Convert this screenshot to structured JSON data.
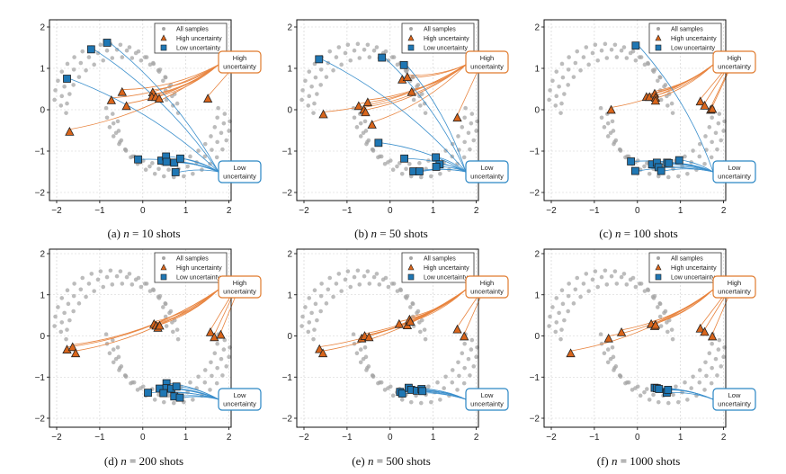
{
  "chart_data": [
    {
      "type": "scatter",
      "panel": "a",
      "caption_prefix": "(a)",
      "caption_var": "n",
      "caption_value": "= 10 shots",
      "high": [
        [
          -1.7,
          -0.54
        ],
        [
          -0.73,
          0.22
        ],
        [
          -0.48,
          0.42
        ],
        [
          -0.38,
          0.08
        ],
        [
          0.23,
          0.41
        ],
        [
          0.21,
          0.3
        ],
        [
          0.3,
          0.3
        ],
        [
          0.38,
          0.26
        ],
        [
          1.51,
          0.26
        ]
      ],
      "low": [
        [
          -0.83,
          1.62
        ],
        [
          -1.2,
          1.46
        ],
        [
          -1.76,
          0.75
        ],
        [
          -0.11,
          -1.2
        ],
        [
          0.43,
          -1.23
        ],
        [
          0.54,
          -1.13
        ],
        [
          0.55,
          -1.26
        ],
        [
          0.73,
          -1.28
        ],
        [
          0.87,
          -1.18
        ],
        [
          0.76,
          -1.51
        ]
      ]
    },
    {
      "type": "scatter",
      "panel": "b",
      "caption_prefix": "(b)",
      "caption_var": "n",
      "caption_value": "= 50 shots",
      "high": [
        [
          -1.55,
          -0.12
        ],
        [
          -0.73,
          0.08
        ],
        [
          -0.52,
          0.17
        ],
        [
          -0.61,
          -0.01
        ],
        [
          -0.57,
          -0.07
        ],
        [
          -0.42,
          -0.37
        ],
        [
          0.28,
          0.72
        ],
        [
          0.4,
          0.78
        ],
        [
          0.5,
          0.42
        ],
        [
          1.56,
          -0.2
        ]
      ],
      "low": [
        [
          -1.65,
          1.22
        ],
        [
          -0.19,
          1.26
        ],
        [
          0.32,
          1.08
        ],
        [
          -0.27,
          -0.8
        ],
        [
          0.33,
          -1.18
        ],
        [
          0.54,
          -1.49
        ],
        [
          0.68,
          -1.49
        ],
        [
          1.06,
          -1.15
        ],
        [
          1.15,
          -1.32
        ],
        [
          1.07,
          -1.38
        ]
      ]
    },
    {
      "type": "scatter",
      "panel": "c",
      "caption_prefix": "(c)",
      "caption_var": "n",
      "caption_value": "= 100 shots",
      "high": [
        [
          -0.61,
          -0.01
        ],
        [
          0.21,
          0.3
        ],
        [
          0.28,
          0.3
        ],
        [
          0.4,
          0.38
        ],
        [
          0.42,
          0.28
        ],
        [
          0.42,
          0.21
        ],
        [
          1.46,
          0.19
        ],
        [
          1.56,
          0.09
        ],
        [
          1.7,
          -0.01
        ],
        [
          1.74,
          0.01
        ]
      ],
      "low": [
        [
          -0.04,
          1.55
        ],
        [
          -0.15,
          -1.25
        ],
        [
          -0.05,
          -1.48
        ],
        [
          0.34,
          -1.32
        ],
        [
          0.45,
          -1.28
        ],
        [
          0.49,
          -1.39
        ],
        [
          0.55,
          -1.48
        ],
        [
          0.69,
          -1.28
        ],
        [
          0.73,
          -1.29
        ],
        [
          0.97,
          -1.22
        ]
      ]
    },
    {
      "type": "scatter",
      "panel": "d",
      "caption_prefix": "(d)",
      "caption_var": "n",
      "caption_value": "= 200 shots",
      "high": [
        [
          -1.76,
          -0.34
        ],
        [
          -1.63,
          -0.28
        ],
        [
          -1.56,
          -0.43
        ],
        [
          0.26,
          0.28
        ],
        [
          0.31,
          0.24
        ],
        [
          0.35,
          0.19
        ],
        [
          0.39,
          0.24
        ],
        [
          1.57,
          0.08
        ],
        [
          1.66,
          -0.04
        ],
        [
          1.81,
          0.02
        ]
      ],
      "low": [
        [
          0.12,
          -1.38
        ],
        [
          0.39,
          -1.28
        ],
        [
          0.55,
          -1.15
        ],
        [
          0.55,
          -1.27
        ],
        [
          0.48,
          -1.39
        ],
        [
          0.66,
          -1.28
        ],
        [
          0.73,
          -1.47
        ],
        [
          0.78,
          -1.23
        ],
        [
          0.86,
          -1.5
        ]
      ]
    },
    {
      "type": "scatter",
      "panel": "e",
      "caption_prefix": "(e)",
      "caption_var": "n",
      "caption_value": "= 500 shots",
      "high": [
        [
          -1.64,
          -0.33
        ],
        [
          -1.56,
          -0.43
        ],
        [
          -0.66,
          -0.07
        ],
        [
          -0.59,
          -0.01
        ],
        [
          -0.49,
          -0.04
        ],
        [
          0.21,
          0.28
        ],
        [
          0.4,
          0.25
        ],
        [
          0.45,
          0.39
        ],
        [
          0.47,
          0.34
        ],
        [
          1.56,
          0.15
        ],
        [
          1.72,
          -0.02
        ]
      ],
      "low": [
        [
          0.23,
          -1.36
        ],
        [
          0.28,
          -1.4
        ],
        [
          0.43,
          -1.26
        ],
        [
          0.49,
          -1.31
        ],
        [
          0.62,
          -1.33
        ],
        [
          0.73,
          -1.29
        ],
        [
          0.75,
          -1.34
        ]
      ]
    },
    {
      "type": "scatter",
      "panel": "f",
      "caption_prefix": "(f)",
      "caption_var": "n",
      "caption_value": "= 1000 shots",
      "high": [
        [
          -1.55,
          -0.43
        ],
        [
          -0.67,
          -0.07
        ],
        [
          -0.37,
          0.08
        ],
        [
          0.32,
          0.28
        ],
        [
          0.4,
          0.23
        ],
        [
          0.42,
          0.26
        ],
        [
          1.46,
          0.17
        ],
        [
          1.56,
          0.09
        ],
        [
          1.74,
          -0.02
        ]
      ],
      "low": [
        [
          0.4,
          -1.26
        ],
        [
          0.45,
          -1.27
        ],
        [
          0.5,
          -1.29
        ],
        [
          0.68,
          -1.38
        ],
        [
          0.71,
          -1.31
        ]
      ]
    }
  ],
  "shared": {
    "xlim": [
      -2.17,
      2.04
    ],
    "ylim": [
      -2.2,
      2.17
    ],
    "xticks": [
      -2,
      -1,
      0,
      1,
      2
    ],
    "yticks": [
      -2,
      -1,
      0,
      1,
      2
    ],
    "xtick_labels": [
      "−2",
      "−1",
      "0",
      "1",
      "2"
    ],
    "ytick_labels": [
      "−2",
      "−1",
      "0",
      "1",
      "2"
    ],
    "grid": true,
    "legend": {
      "position": "top-right",
      "items": [
        "All samples",
        "High uncertainty",
        "Low uncertainty"
      ]
    },
    "annotations": {
      "high": [
        "High",
        "uncertainty"
      ],
      "low": [
        "Low",
        "uncertainty"
      ]
    },
    "colors": {
      "samples": "#a6a6a6",
      "high": "#d9651b",
      "high_line": "#e8843f",
      "low": "#1f77b4",
      "low_line": "#3b8fcc",
      "high_box": "#e07b2e",
      "low_box": "#2a86c4"
    },
    "all_samples": [
      [
        0.7,
        0.1
      ],
      [
        0.68,
        0.33
      ],
      [
        0.62,
        0.56
      ],
      [
        0.53,
        0.78
      ],
      [
        0.4,
        0.97
      ],
      [
        0.24,
        1.13
      ],
      [
        0.05,
        1.27
      ],
      [
        -0.16,
        1.37
      ],
      [
        -0.37,
        1.43
      ],
      [
        -0.6,
        1.45
      ],
      [
        -0.83,
        1.43
      ],
      [
        -1.04,
        1.37
      ],
      [
        -1.25,
        1.27
      ],
      [
        -1.44,
        1.13
      ],
      [
        -1.6,
        0.97
      ],
      [
        -1.73,
        0.78
      ],
      [
        -1.82,
        0.56
      ],
      [
        -1.88,
        0.33
      ],
      [
        -1.9,
        0.1
      ],
      [
        0.82,
        -0.08
      ],
      [
        0.8,
        0.15
      ],
      [
        0.74,
        0.38
      ],
      [
        0.65,
        0.6
      ],
      [
        0.52,
        0.79
      ],
      [
        0.36,
        0.95
      ],
      [
        0.17,
        1.09
      ],
      [
        -0.04,
        1.19
      ],
      [
        -0.25,
        1.25
      ],
      [
        -0.48,
        1.27
      ],
      [
        -0.71,
        1.25
      ],
      [
        -0.92,
        1.19
      ],
      [
        -1.13,
        1.09
      ],
      [
        -1.32,
        0.95
      ],
      [
        -1.48,
        0.79
      ],
      [
        -1.61,
        0.6
      ],
      [
        -1.7,
        0.38
      ],
      [
        -1.76,
        0.15
      ],
      [
        -1.78,
        -0.08
      ],
      [
        0.55,
        0.24
      ],
      [
        0.53,
        0.47
      ],
      [
        0.47,
        0.7
      ],
      [
        0.38,
        0.92
      ],
      [
        0.25,
        1.11
      ],
      [
        0.09,
        1.27
      ],
      [
        -0.1,
        1.41
      ],
      [
        -0.31,
        1.51
      ],
      [
        -0.52,
        1.57
      ],
      [
        -0.75,
        1.59
      ],
      [
        -0.98,
        1.57
      ],
      [
        -1.19,
        1.51
      ],
      [
        -1.4,
        1.41
      ],
      [
        -1.59,
        1.27
      ],
      [
        -1.75,
        1.11
      ],
      [
        -1.88,
        0.92
      ],
      [
        -1.97,
        0.7
      ],
      [
        -2.03,
        0.47
      ],
      [
        -2.05,
        0.24
      ],
      [
        1.9,
        -0.1
      ],
      [
        1.88,
        -0.33
      ],
      [
        1.82,
        -0.56
      ],
      [
        1.73,
        -0.78
      ],
      [
        1.6,
        -0.97
      ],
      [
        1.44,
        -1.13
      ],
      [
        1.25,
        -1.27
      ],
      [
        1.04,
        -1.37
      ],
      [
        0.83,
        -1.43
      ],
      [
        0.6,
        -1.45
      ],
      [
        0.37,
        -1.43
      ],
      [
        0.16,
        -1.37
      ],
      [
        -0.05,
        -1.27
      ],
      [
        -0.24,
        -1.13
      ],
      [
        -0.4,
        -0.97
      ],
      [
        -0.53,
        -0.78
      ],
      [
        -0.62,
        -0.56
      ],
      [
        -0.68,
        -0.33
      ],
      [
        -0.7,
        -0.1
      ],
      [
        2.02,
        -0.28
      ],
      [
        2.0,
        -0.51
      ],
      [
        1.94,
        -0.74
      ],
      [
        1.85,
        -0.96
      ],
      [
        1.72,
        -1.15
      ],
      [
        1.56,
        -1.31
      ],
      [
        1.37,
        -1.45
      ],
      [
        1.16,
        -1.55
      ],
      [
        0.95,
        -1.61
      ],
      [
        0.72,
        -1.63
      ],
      [
        0.49,
        -1.61
      ],
      [
        0.28,
        -1.55
      ],
      [
        0.07,
        -1.45
      ],
      [
        -0.12,
        -1.31
      ],
      [
        -0.28,
        -1.15
      ],
      [
        -0.41,
        -0.96
      ],
      [
        -0.5,
        -0.74
      ],
      [
        -0.56,
        -0.51
      ],
      [
        -0.58,
        -0.28
      ],
      [
        1.75,
        0.04
      ],
      [
        1.73,
        -0.19
      ],
      [
        1.67,
        -0.42
      ],
      [
        1.58,
        -0.64
      ],
      [
        1.45,
        -0.83
      ],
      [
        1.29,
        -0.99
      ],
      [
        1.1,
        -1.13
      ],
      [
        0.89,
        -1.23
      ],
      [
        0.68,
        -1.29
      ],
      [
        0.45,
        -1.31
      ],
      [
        0.22,
        -1.29
      ],
      [
        0.01,
        -1.23
      ],
      [
        -0.2,
        -1.13
      ],
      [
        -0.39,
        -0.99
      ],
      [
        -0.55,
        -0.83
      ],
      [
        -0.68,
        -0.64
      ],
      [
        -0.77,
        -0.42
      ],
      [
        -0.83,
        -0.19
      ],
      [
        -0.85,
        0.04
      ]
    ]
  }
}
